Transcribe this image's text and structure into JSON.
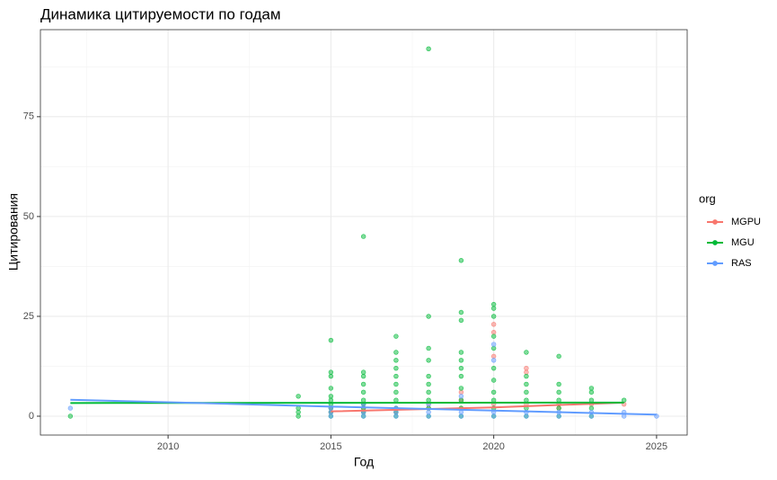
{
  "chart_data": {
    "type": "scatter",
    "title": "Динамика цитируемости по годам",
    "x_label": "Год",
    "y_label": "Цитирования",
    "legend_title": "org",
    "xlim": [
      2006.08,
      2025.94
    ],
    "ylim": [
      -4.73,
      96.8
    ],
    "xticks": [
      2010,
      2015,
      2020,
      2025
    ],
    "yticks": [
      0,
      25,
      50,
      75
    ],
    "x_minor_ticks": [
      2007.5,
      2012.5,
      2017.5,
      2022.5
    ],
    "y_minor_ticks": [
      12.5,
      37.5,
      62.5,
      87.5
    ],
    "grid": true,
    "legend": "right",
    "series": [
      {
        "name": "MGPU",
        "color": "#F8766D",
        "x": [
          2015,
          2015,
          2016,
          2016,
          2016,
          2017,
          2017,
          2018,
          2018,
          2019,
          2019,
          2019,
          2020,
          2020,
          2020,
          2020,
          2021,
          2021,
          2021,
          2022,
          2022,
          2023,
          2024
        ],
        "values": [
          1,
          2,
          1,
          2,
          3,
          1,
          2,
          2,
          3,
          2,
          4,
          6,
          3,
          15,
          21,
          23,
          3,
          11,
          12,
          2,
          3,
          3,
          3
        ],
        "trend_x": [
          2015,
          2020,
          2024
        ],
        "trend_values": [
          1.2,
          2.2,
          3.4
        ]
      },
      {
        "name": "MGU",
        "color": "#00BA38",
        "x": [
          2007,
          2014,
          2014,
          2014,
          2014,
          2015,
          2015,
          2015,
          2015,
          2015,
          2015,
          2015,
          2015,
          2015,
          2015,
          2016,
          2016,
          2016,
          2016,
          2016,
          2016,
          2016,
          2016,
          2016,
          2016,
          2017,
          2017,
          2017,
          2017,
          2017,
          2017,
          2017,
          2017,
          2017,
          2017,
          2017,
          2018,
          2018,
          2018,
          2018,
          2018,
          2018,
          2018,
          2018,
          2018,
          2018,
          2019,
          2019,
          2019,
          2019,
          2019,
          2019,
          2019,
          2019,
          2019,
          2019,
          2019,
          2020,
          2020,
          2020,
          2020,
          2020,
          2020,
          2020,
          2020,
          2020,
          2020,
          2020,
          2021,
          2021,
          2021,
          2021,
          2021,
          2021,
          2021,
          2022,
          2022,
          2022,
          2022,
          2022,
          2022,
          2023,
          2023,
          2023,
          2023,
          2023,
          2024
        ],
        "values": [
          0,
          0,
          1,
          2,
          5,
          0,
          1,
          2,
          3,
          4,
          5,
          7,
          10,
          11,
          19,
          0,
          1,
          2,
          3,
          4,
          6,
          8,
          10,
          11,
          45,
          0,
          1,
          2,
          4,
          6,
          8,
          10,
          12,
          14,
          16,
          20,
          0,
          2,
          4,
          6,
          8,
          10,
          14,
          17,
          25,
          92,
          0,
          2,
          4,
          7,
          10,
          12,
          14,
          16,
          24,
          26,
          39,
          0,
          2,
          4,
          6,
          9,
          12,
          17,
          20,
          25,
          27,
          28,
          0,
          2,
          4,
          6,
          8,
          10,
          16,
          0,
          2,
          4,
          6,
          8,
          15,
          0,
          2,
          4,
          6,
          7,
          4
        ],
        "trend_x": [
          2007,
          2024
        ],
        "trend_values": [
          3.3,
          3.4
        ]
      },
      {
        "name": "RAS",
        "color": "#619CFF",
        "x": [
          2007,
          2015,
          2015,
          2015,
          2016,
          2016,
          2016,
          2017,
          2017,
          2017,
          2018,
          2018,
          2018,
          2019,
          2019,
          2019,
          2020,
          2020,
          2020,
          2020,
          2021,
          2021,
          2022,
          2022,
          2023,
          2023,
          2024,
          2024,
          2025
        ],
        "values": [
          2,
          0,
          1,
          2,
          0,
          1,
          3,
          0,
          1,
          2,
          0,
          1,
          3,
          0,
          1,
          5,
          0,
          1,
          14,
          18,
          0,
          1,
          0,
          1,
          0,
          1,
          0,
          1,
          0
        ],
        "trend_x": [
          2007,
          2010,
          2015,
          2020,
          2024,
          2025
        ],
        "trend_values": [
          4.1,
          3.5,
          2.4,
          1.4,
          0.6,
          0.4
        ]
      }
    ]
  }
}
